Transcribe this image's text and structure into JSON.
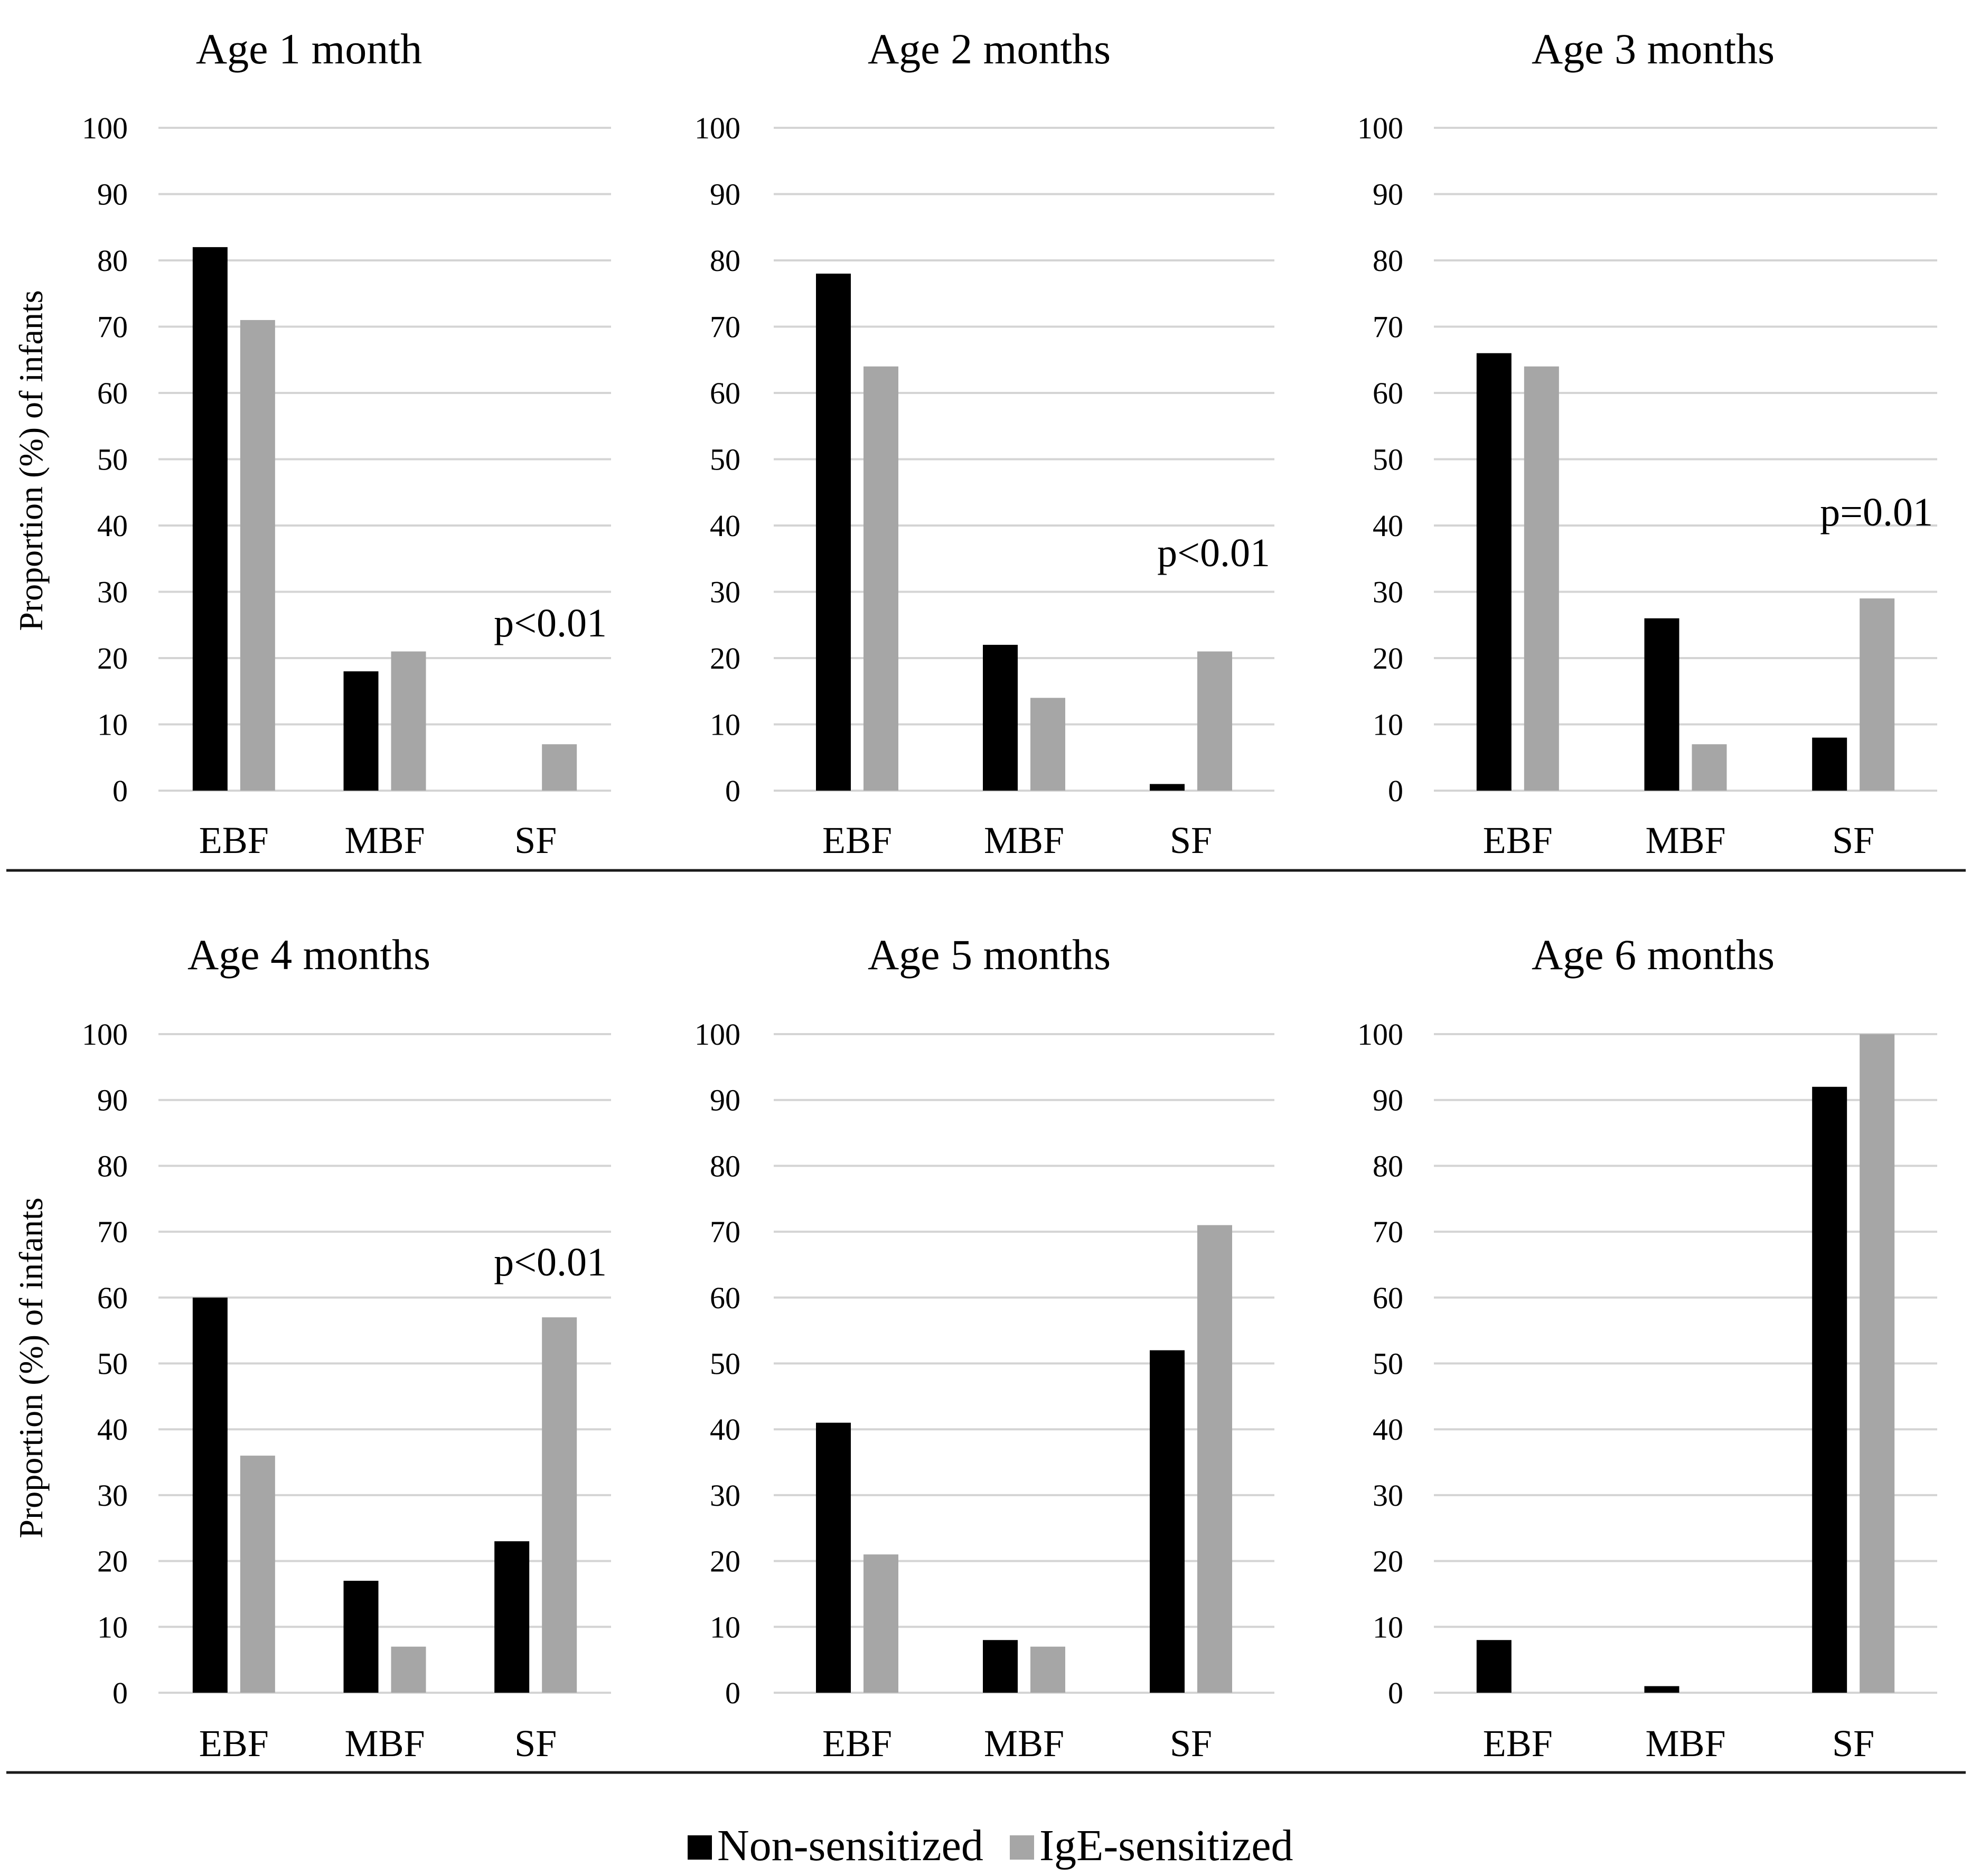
{
  "colors": {
    "non_sensitized": "#000000",
    "ige_sensitized": "#a6a6a6",
    "gridline": "#d4d4d4"
  },
  "y_axis_label": "Proportion (%) of infants",
  "legend": {
    "items": [
      {
        "label": "Non-sensitized",
        "color": "#000000"
      },
      {
        "label": "IgE-sensitized",
        "color": "#a6a6a6"
      }
    ]
  },
  "chart_data": [
    {
      "type": "bar",
      "title": "Age 1 month",
      "categories": [
        "EBF",
        "MBF",
        "SF"
      ],
      "series": [
        {
          "name": "Non-sensitized",
          "values": [
            82,
            18,
            0
          ]
        },
        {
          "name": "IgE-sensitized",
          "values": [
            71,
            21,
            7
          ]
        }
      ],
      "ylabel": "Proportion (%) of infants",
      "ylim": [
        0,
        100
      ],
      "yticks": [
        0,
        10,
        20,
        30,
        40,
        50,
        60,
        70,
        80,
        90,
        100
      ],
      "annotation": "p<0.01"
    },
    {
      "type": "bar",
      "title": "Age 2 months",
      "categories": [
        "EBF",
        "MBF",
        "SF"
      ],
      "series": [
        {
          "name": "Non-sensitized",
          "values": [
            78,
            22,
            1
          ]
        },
        {
          "name": "IgE-sensitized",
          "values": [
            64,
            14,
            21
          ]
        }
      ],
      "ylabel": "",
      "ylim": [
        0,
        100
      ],
      "yticks": [
        0,
        10,
        20,
        30,
        40,
        50,
        60,
        70,
        80,
        90,
        100
      ],
      "annotation": "p<0.01"
    },
    {
      "type": "bar",
      "title": "Age 3 months",
      "categories": [
        "EBF",
        "MBF",
        "SF"
      ],
      "series": [
        {
          "name": "Non-sensitized",
          "values": [
            66,
            26,
            8
          ]
        },
        {
          "name": "IgE-sensitized",
          "values": [
            64,
            7,
            29
          ]
        }
      ],
      "ylabel": "",
      "ylim": [
        0,
        100
      ],
      "yticks": [
        0,
        10,
        20,
        30,
        40,
        50,
        60,
        70,
        80,
        90,
        100
      ],
      "annotation": "p=0.01"
    },
    {
      "type": "bar",
      "title": "Age 4 months",
      "categories": [
        "EBF",
        "MBF",
        "SF"
      ],
      "series": [
        {
          "name": "Non-sensitized",
          "values": [
            60,
            17,
            23
          ]
        },
        {
          "name": "IgE-sensitized",
          "values": [
            36,
            7,
            57
          ]
        }
      ],
      "ylabel": "Proportion (%) of infants",
      "ylim": [
        0,
        100
      ],
      "yticks": [
        0,
        10,
        20,
        30,
        40,
        50,
        60,
        70,
        80,
        90,
        100
      ],
      "annotation": "p<0.01"
    },
    {
      "type": "bar",
      "title": "Age 5 months",
      "categories": [
        "EBF",
        "MBF",
        "SF"
      ],
      "series": [
        {
          "name": "Non-sensitized",
          "values": [
            41,
            8,
            52
          ]
        },
        {
          "name": "IgE-sensitized",
          "values": [
            21,
            7,
            71
          ]
        }
      ],
      "ylabel": "",
      "ylim": [
        0,
        100
      ],
      "yticks": [
        0,
        10,
        20,
        30,
        40,
        50,
        60,
        70,
        80,
        90,
        100
      ],
      "annotation": ""
    },
    {
      "type": "bar",
      "title": "Age 6 months",
      "categories": [
        "EBF",
        "MBF",
        "SF"
      ],
      "series": [
        {
          "name": "Non-sensitized",
          "values": [
            8,
            1,
            92
          ]
        },
        {
          "name": "IgE-sensitized",
          "values": [
            0,
            0,
            100
          ]
        }
      ],
      "ylabel": "",
      "ylim": [
        0,
        100
      ],
      "yticks": [
        0,
        10,
        20,
        30,
        40,
        50,
        60,
        70,
        80,
        90,
        100
      ],
      "annotation": ""
    }
  ]
}
